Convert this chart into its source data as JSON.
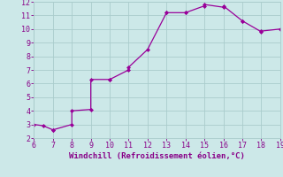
{
  "x": [
    6,
    6.5,
    7,
    7,
    8,
    8,
    9,
    9,
    10,
    10,
    11,
    11,
    12,
    13,
    13,
    14,
    14,
    15,
    15,
    16,
    16,
    17,
    17,
    18,
    18,
    19
  ],
  "y": [
    3.0,
    2.9,
    2.6,
    2.6,
    3.0,
    4.0,
    4.1,
    6.3,
    6.3,
    6.3,
    7.0,
    7.2,
    8.5,
    11.2,
    11.2,
    11.2,
    11.2,
    11.7,
    11.8,
    11.6,
    11.7,
    10.6,
    10.6,
    9.8,
    9.85,
    10.0
  ],
  "line_color": "#990099",
  "marker": "D",
  "marker_size": 2,
  "bg_color": "#cce8e8",
  "grid_color": "#aacccc",
  "xlabel": "Windchill (Refroidissement éolien,°C)",
  "xlabel_color": "#880088",
  "tick_color": "#880088",
  "xlim": [
    6,
    19
  ],
  "ylim": [
    2,
    12
  ],
  "xticks": [
    6,
    7,
    8,
    9,
    10,
    11,
    12,
    13,
    14,
    15,
    16,
    17,
    18,
    19
  ],
  "yticks": [
    2,
    3,
    4,
    5,
    6,
    7,
    8,
    9,
    10,
    11,
    12
  ]
}
